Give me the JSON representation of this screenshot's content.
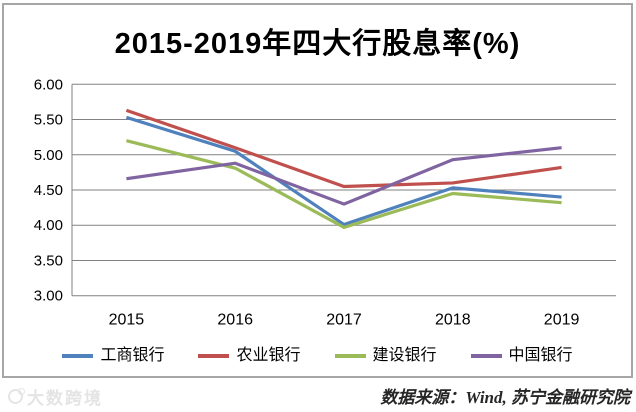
{
  "chart": {
    "title": "2015-2019年四大行股息率(%)"
  },
  "chart_data": {
    "type": "line",
    "title": "2015-2019年四大行股息率(%)",
    "categories": [
      "2015",
      "2016",
      "2017",
      "2018",
      "2019"
    ],
    "series": [
      {
        "name": "工商银行",
        "color": "#4F81BD",
        "values": [
          5.53,
          5.05,
          4.01,
          4.53,
          4.4
        ]
      },
      {
        "name": "农业银行",
        "color": "#C0504D",
        "values": [
          5.63,
          5.1,
          4.55,
          4.6,
          4.82
        ]
      },
      {
        "name": "建设银行",
        "color": "#9BBB59",
        "values": [
          5.2,
          4.81,
          3.97,
          4.45,
          4.32
        ]
      },
      {
        "name": "中国银行",
        "color": "#8064A2",
        "values": [
          4.66,
          4.88,
          4.3,
          4.93,
          5.1
        ]
      }
    ],
    "ylim": [
      3.0,
      6.0
    ],
    "y_ticks": [
      "6.00",
      "5.50",
      "5.00",
      "4.50",
      "4.00",
      "3.50",
      "3.00"
    ],
    "grid": true,
    "legend_position": "bottom",
    "gridline_color": "#828282"
  },
  "footer": {
    "watermark": "大数跨境",
    "watermark_icon": "circle-logo-icon",
    "source": "数据来源：Wind, 苏宁金融研究院"
  }
}
